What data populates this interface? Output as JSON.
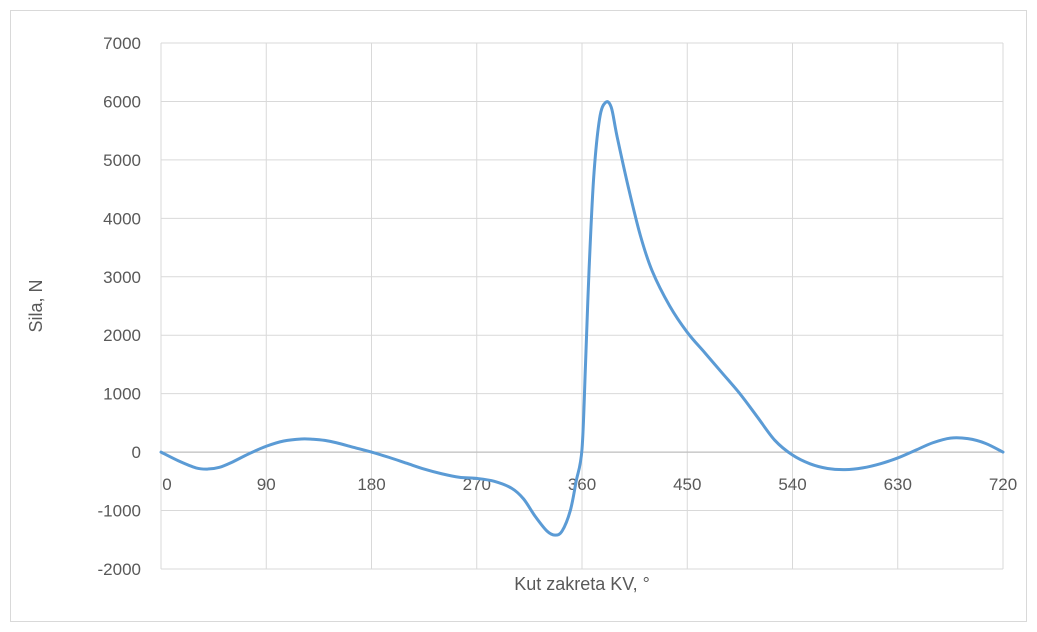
{
  "chart_data": {
    "type": "line",
    "title": "",
    "xlabel": "Kut zakreta KV, °",
    "ylabel": "Sila, N",
    "xlim": [
      0,
      720
    ],
    "ylim": [
      -2000,
      7000
    ],
    "x_ticks": [
      0,
      90,
      180,
      270,
      360,
      450,
      540,
      630,
      720
    ],
    "x_tick_labels": [
      "0",
      "90",
      "180",
      "270",
      "360",
      "450",
      "540",
      "630",
      "720"
    ],
    "y_ticks": [
      -2000,
      -1000,
      0,
      1000,
      2000,
      3000,
      4000,
      5000,
      6000,
      7000
    ],
    "y_tick_labels": [
      "-2000",
      "-1000",
      "0",
      "1000",
      "2000",
      "3000",
      "4000",
      "5000",
      "6000",
      "7000"
    ],
    "grid": true,
    "legend": "none",
    "line_color": "#5b9bd5",
    "grid_color": "#d9d9d9",
    "series": [
      {
        "x": [
          0,
          15,
          30,
          40,
          50,
          60,
          75,
          90,
          105,
          120,
          130,
          140,
          150,
          165,
          180,
          195,
          210,
          225,
          240,
          255,
          270,
          285,
          300,
          310,
          320,
          330,
          337,
          343,
          350,
          355,
          360,
          363,
          366,
          370,
          375,
          380,
          385,
          390,
          400,
          410,
          420,
          435,
          450,
          465,
          480,
          495,
          510,
          525,
          540,
          555,
          570,
          585,
          600,
          615,
          630,
          645,
          660,
          675,
          690,
          705,
          720
        ],
        "y": [
          0,
          -150,
          -270,
          -290,
          -260,
          -180,
          -30,
          100,
          190,
          225,
          220,
          200,
          160,
          80,
          0,
          -90,
          -190,
          -290,
          -370,
          -430,
          -450,
          -500,
          -620,
          -800,
          -1100,
          -1350,
          -1420,
          -1350,
          -1000,
          -500,
          50,
          1500,
          3100,
          4700,
          5700,
          5980,
          5900,
          5400,
          4500,
          3700,
          3100,
          2500,
          2050,
          1700,
          1350,
          1000,
          600,
          200,
          -50,
          -200,
          -280,
          -300,
          -270,
          -200,
          -100,
          30,
          160,
          240,
          230,
          150,
          0
        ]
      }
    ]
  }
}
